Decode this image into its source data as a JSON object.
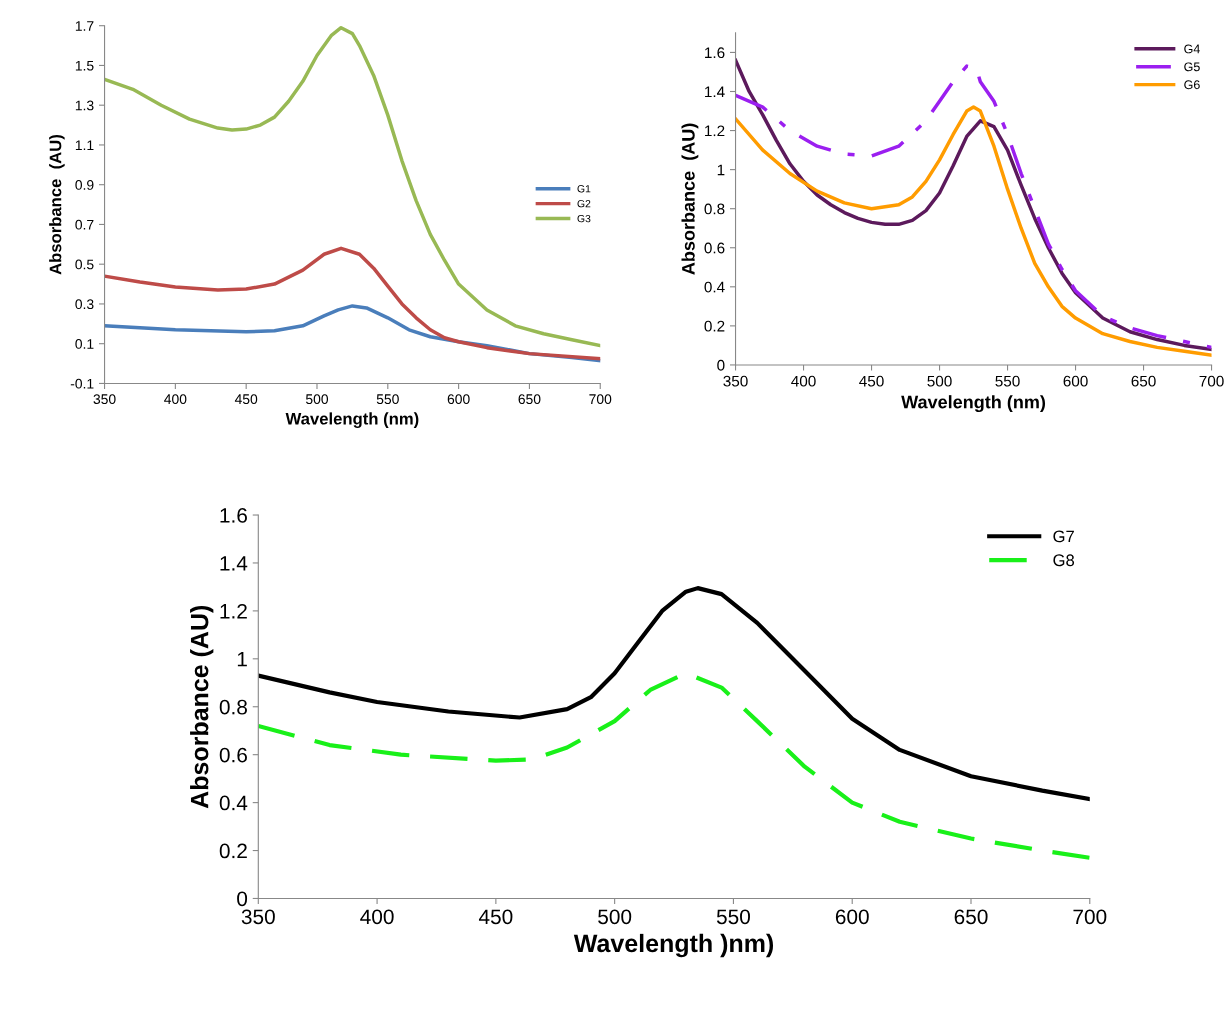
{
  "chart_data": [
    {
      "type": "line",
      "xlabel": "Wavelength (nm)",
      "ylabel": "Absorbance  (AU)",
      "xlim": [
        350,
        700
      ],
      "ylim": [
        -0.1,
        1.7
      ],
      "xticks": [
        350,
        400,
        450,
        500,
        550,
        600,
        650,
        700
      ],
      "yticks": [
        -0.1,
        0.1,
        0.3,
        0.5,
        0.7,
        0.9,
        1.1,
        1.3,
        1.5,
        1.7
      ],
      "legend": "right",
      "grid": false,
      "series": [
        {
          "name": "G1",
          "color": "#4a7ebb",
          "line_style": "solid",
          "x": [
            350,
            400,
            450,
            470,
            490,
            505,
            515,
            525,
            535,
            550,
            565,
            580,
            600,
            620,
            650,
            680,
            700
          ],
          "values": [
            0.19,
            0.17,
            0.16,
            0.165,
            0.19,
            0.24,
            0.27,
            0.29,
            0.28,
            0.23,
            0.17,
            0.135,
            0.11,
            0.09,
            0.05,
            0.03,
            0.015
          ]
        },
        {
          "name": "G2",
          "color": "#be4b48",
          "line_style": "solid",
          "x": [
            350,
            375,
            400,
            430,
            450,
            470,
            490,
            505,
            517,
            530,
            540,
            550,
            560,
            570,
            580,
            590,
            600,
            620,
            650,
            700
          ],
          "values": [
            0.44,
            0.41,
            0.385,
            0.37,
            0.375,
            0.4,
            0.47,
            0.55,
            0.58,
            0.55,
            0.48,
            0.39,
            0.3,
            0.23,
            0.17,
            0.13,
            0.11,
            0.08,
            0.05,
            0.025
          ]
        },
        {
          "name": "G3",
          "color": "#98b954",
          "line_style": "solid",
          "x": [
            350,
            370,
            390,
            410,
            430,
            440,
            450,
            460,
            470,
            480,
            490,
            500,
            510,
            517,
            525,
            530,
            540,
            550,
            560,
            570,
            580,
            590,
            600,
            620,
            640,
            660,
            680,
            700
          ],
          "values": [
            1.43,
            1.38,
            1.3,
            1.23,
            1.185,
            1.175,
            1.18,
            1.2,
            1.24,
            1.32,
            1.42,
            1.55,
            1.65,
            1.69,
            1.66,
            1.6,
            1.45,
            1.25,
            1.02,
            0.82,
            0.65,
            0.52,
            0.4,
            0.27,
            0.19,
            0.15,
            0.12,
            0.09
          ]
        }
      ]
    },
    {
      "type": "line",
      "xlabel": "Wavelength (nm)",
      "ylabel": "Absorbance  (AU)",
      "xlim": [
        350,
        700
      ],
      "ylim": [
        0,
        1.7
      ],
      "xticks": [
        350,
        400,
        450,
        500,
        550,
        600,
        650,
        700
      ],
      "yticks": [
        0,
        0.2,
        0.4,
        0.6,
        0.8,
        1,
        1.2,
        1.4,
        1.6
      ],
      "legend": "top right",
      "grid": false,
      "series": [
        {
          "name": "G4",
          "color": "#5c1a5c",
          "line_style": "solid",
          "x": [
            350,
            360,
            370,
            380,
            390,
            400,
            410,
            420,
            430,
            440,
            450,
            460,
            470,
            480,
            490,
            500,
            510,
            520,
            530,
            540,
            550,
            560,
            570,
            580,
            590,
            600,
            620,
            640,
            660,
            680,
            700
          ],
          "values": [
            1.56,
            1.4,
            1.28,
            1.15,
            1.03,
            0.94,
            0.87,
            0.82,
            0.78,
            0.75,
            0.73,
            0.72,
            0.72,
            0.74,
            0.79,
            0.88,
            1.02,
            1.17,
            1.25,
            1.22,
            1.1,
            0.92,
            0.75,
            0.6,
            0.47,
            0.37,
            0.24,
            0.17,
            0.13,
            0.1,
            0.08
          ]
        },
        {
          "name": "G5",
          "color": "#9b1ff0",
          "line_style": "dashdot",
          "x": [
            350,
            370,
            390,
            410,
            430,
            450,
            470,
            490,
            500,
            510,
            520,
            527,
            530,
            540,
            550,
            560,
            570,
            580,
            590,
            600,
            620,
            640,
            660,
            680,
            700
          ],
          "values": [
            1.38,
            1.32,
            1.2,
            1.12,
            1.08,
            1.07,
            1.12,
            1.25,
            1.35,
            1.45,
            1.53,
            1.52,
            1.45,
            1.35,
            1.18,
            0.98,
            0.8,
            0.62,
            0.49,
            0.38,
            0.25,
            0.19,
            0.15,
            0.12,
            0.09
          ]
        },
        {
          "name": "G6",
          "color": "#ff9c00",
          "line_style": "solid",
          "x": [
            350,
            370,
            390,
            410,
            430,
            450,
            470,
            480,
            490,
            500,
            510,
            520,
            525,
            530,
            540,
            550,
            560,
            570,
            580,
            590,
            600,
            620,
            640,
            660,
            680,
            700
          ],
          "values": [
            1.26,
            1.1,
            0.98,
            0.89,
            0.83,
            0.8,
            0.82,
            0.86,
            0.94,
            1.05,
            1.18,
            1.3,
            1.32,
            1.3,
            1.12,
            0.9,
            0.7,
            0.52,
            0.4,
            0.3,
            0.24,
            0.16,
            0.12,
            0.09,
            0.07,
            0.05
          ]
        }
      ]
    },
    {
      "type": "line",
      "xlabel": "Wavelength )nm)",
      "ylabel": "Absorbance (AU)",
      "xlim": [
        350,
        700
      ],
      "ylim": [
        0,
        1.6
      ],
      "xticks": [
        350,
        400,
        450,
        500,
        550,
        600,
        650,
        700
      ],
      "yticks": [
        0,
        0.2,
        0.4,
        0.6,
        0.8,
        1,
        1.2,
        1.4,
        1.6
      ],
      "legend": "top right",
      "grid": false,
      "series": [
        {
          "name": "G7",
          "color": "#000000",
          "line_style": "solid",
          "x": [
            350,
            380,
            400,
            430,
            460,
            480,
            490,
            500,
            510,
            520,
            530,
            535,
            545,
            560,
            580,
            600,
            620,
            650,
            680,
            700
          ],
          "values": [
            0.93,
            0.86,
            0.82,
            0.78,
            0.755,
            0.79,
            0.84,
            0.94,
            1.07,
            1.2,
            1.28,
            1.295,
            1.27,
            1.15,
            0.95,
            0.75,
            0.62,
            0.51,
            0.45,
            0.415
          ]
        },
        {
          "name": "G8",
          "color": "#19f019",
          "line_style": "dashed",
          "x": [
            350,
            380,
            410,
            450,
            465,
            480,
            500,
            515,
            530,
            545,
            560,
            580,
            600,
            620,
            650,
            680,
            700
          ],
          "values": [
            0.72,
            0.64,
            0.6,
            0.575,
            0.58,
            0.63,
            0.74,
            0.87,
            0.94,
            0.88,
            0.74,
            0.55,
            0.4,
            0.32,
            0.25,
            0.2,
            0.17
          ]
        }
      ]
    }
  ]
}
